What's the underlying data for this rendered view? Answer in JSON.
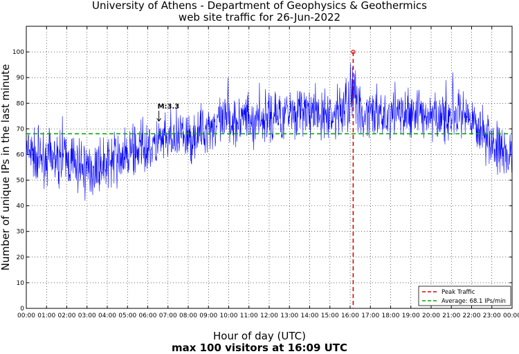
{
  "chart_data": {
    "type": "line",
    "title": "University of Athens - Department of Geophysics & Geothermics",
    "subtitle": "web site traffic for 26-Jun-2022",
    "xlabel": "Hour of day (UTC)",
    "xlabel_sub": "max 100 visitors at 16:09 UTC",
    "ylabel": "Number of unique IPs in the last minute",
    "ylim": [
      0,
      110
    ],
    "yticks": [
      0,
      10,
      20,
      30,
      40,
      50,
      60,
      70,
      80,
      90,
      100
    ],
    "xticks": [
      "00:00",
      "01:00",
      "02:00",
      "03:00",
      "04:00",
      "05:00",
      "06:00",
      "07:00",
      "08:00",
      "09:00",
      "10:00",
      "11:00",
      "12:00",
      "13:00",
      "14:00",
      "15:00",
      "16:00",
      "17:00",
      "18:00",
      "19:00",
      "20:00",
      "21:00",
      "22:00",
      "23:00",
      "00:00"
    ],
    "xlim_hours": [
      0,
      24
    ],
    "grid": true,
    "legend_position": "bottom-right",
    "traffic_profile": {
      "hours": [
        0,
        0.5,
        1,
        1.5,
        2,
        2.5,
        3,
        3.5,
        4,
        4.5,
        5,
        5.5,
        6,
        6.5,
        7,
        7.5,
        8,
        8.5,
        9,
        9.5,
        10,
        10.5,
        11,
        11.5,
        12,
        12.5,
        13,
        13.5,
        14,
        14.5,
        15,
        15.5,
        16,
        16.5,
        17,
        17.5,
        18,
        18.5,
        19,
        19.5,
        20,
        20.5,
        21,
        21.5,
        22,
        22.5,
        23,
        23.5,
        24
      ],
      "values": [
        61,
        59,
        59,
        58,
        58,
        56,
        54,
        55,
        57,
        58,
        60,
        62,
        63,
        64,
        65,
        66,
        66,
        68,
        71,
        72,
        73,
        74,
        74,
        74,
        74,
        75,
        77,
        77,
        76,
        75,
        75,
        76,
        80,
        78,
        75,
        75,
        75,
        76,
        76,
        76,
        75,
        75,
        74,
        74,
        72,
        70,
        65,
        60,
        58
      ],
      "noise_amplitude": 6,
      "color": "#0000ff"
    },
    "average": {
      "value": 68.1,
      "label": "Average: 68.1 IPs/min",
      "color": "#00aa00"
    },
    "peak": {
      "value": 100,
      "time": "16:09",
      "hour": 16.15,
      "label": "Peak Traffic",
      "color": "#dd0000"
    },
    "annotations": [
      {
        "text": "M:3.3",
        "hour": 6.55,
        "value": 73
      }
    ]
  }
}
